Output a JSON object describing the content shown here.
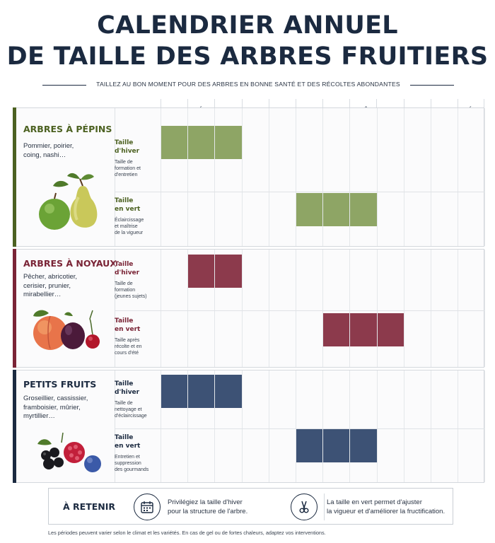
{
  "title_line1": "CALENDRIER ANNUEL",
  "title_line2": "DE TAILLE DES ARBRES FRUITIERS",
  "subtitle": "TAILLEZ AU BON MOMENT POUR DES ARBRES EN BONNE SANTÉ ET DES RÉCOLTES ABONDANTES",
  "colors": {
    "green": "#8ea565",
    "red": "#8c3a4c",
    "blue": "#3d5275",
    "green_text": "#4c6121",
    "red_text": "#7a2436",
    "blue_text": "#1b2a40"
  },
  "chart_data": {
    "type": "table",
    "months": [
      "JANV.",
      "FÉV.",
      "MARS",
      "AVR.",
      "MAI",
      "JUIN",
      "JUIL.",
      "AOÛT",
      "SEPT.",
      "OCT.",
      "NOV.",
      "DÉC."
    ],
    "groups": [
      {
        "name": "ARBRES À PÉPINS",
        "description": "Pommier, poirier, coing, nashi…",
        "color": "green",
        "rows": [
          {
            "title1": "Taille",
            "title2": "d'hiver",
            "detail": [
              "Taille de",
              "formation et",
              "d'entretien"
            ],
            "months_active": [
              1,
              2,
              3
            ]
          },
          {
            "title1": "Taille",
            "title2": "en vert",
            "detail": [
              "Éclaircissage",
              "et maîtrise",
              "de la vigueur"
            ],
            "months_active": [
              6,
              7,
              8
            ]
          }
        ]
      },
      {
        "name": "ARBRES À NOYAUX",
        "description": "Pêcher, abricotier, cerisier, prunier, mirabellier…",
        "color": "red",
        "rows": [
          {
            "title1": "Taille",
            "title2": "d'hiver",
            "detail": [
              "Taille de",
              "formation",
              "(jeunes sujets)"
            ],
            "months_active": [
              2,
              3
            ]
          },
          {
            "title1": "Taille",
            "title2": "en vert",
            "detail": [
              "Taille après",
              "récolte et en",
              "cours d'été"
            ],
            "months_active": [
              7,
              8,
              9
            ]
          }
        ]
      },
      {
        "name": "PETITS FRUITS",
        "description": "Groseillier, cassissier, framboisier, mûrier, myrtillier…",
        "color": "blue",
        "rows": [
          {
            "title1": "Taille",
            "title2": "d'hiver",
            "detail": [
              "Taille de",
              "nettoyage et",
              "d'éclaircissage"
            ],
            "months_active": [
              1,
              2,
              3
            ]
          },
          {
            "title1": "Taille",
            "title2": "en vert",
            "detail": [
              "Entretien et",
              "suppression",
              "des gourmands"
            ],
            "months_active": [
              6,
              7,
              8
            ]
          }
        ]
      }
    ]
  },
  "retain": {
    "title": "À RETENIR",
    "tip1": [
      "Privilégiez la taille d'hiver",
      "pour la structure de l'arbre."
    ],
    "tip2": [
      "La taille en vert permet d'ajuster",
      "la vigueur et d'améliorer la fructification."
    ],
    "icon1": "calendar-icon",
    "icon2": "pruning-shears-icon"
  },
  "footnote": "Les périodes peuvent varier selon le climat et les variétés. En cas de gel ou de fortes chaleurs, adaptez vos interventions."
}
